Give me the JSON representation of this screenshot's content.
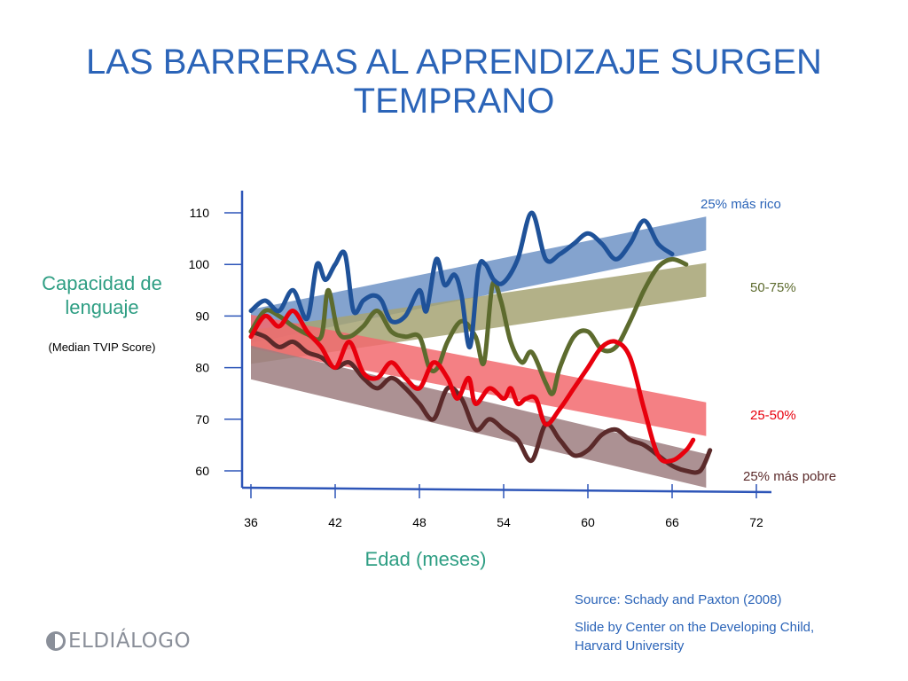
{
  "title": "LAS BARRERAS AL APRENDIZAJE SURGEN TEMPRANO",
  "ylabel": "Capacidad de lenguaje",
  "ysubtitle": "(Median TVIP Score)",
  "xlabel": "Edad (meses)",
  "source": "Source: Schady and Paxton (2008)",
  "credit": "Slide by  Center on the Developing Child, Harvard University",
  "logo_text": "ELDIÁLOGO",
  "colors": {
    "title": "#2b64b8",
    "axis_label": "#2e9e83",
    "axis": "#2d55b8"
  },
  "chart_data": {
    "type": "line",
    "xlabel": "Edad (meses)",
    "ylabel": "Capacidad de lenguaje",
    "xlim": [
      36,
      72
    ],
    "ylim": [
      56,
      113
    ],
    "x_ticks": [
      36,
      42,
      48,
      54,
      60,
      66,
      72
    ],
    "y_ticks": [
      60,
      70,
      80,
      90,
      100,
      110
    ],
    "grid": false,
    "legend": "right, labels at line ends",
    "series": [
      {
        "name": "25% más rico",
        "color": "#1f5299",
        "label_color": "#2b64b8",
        "points": [
          [
            36,
            91
          ],
          [
            37,
            93
          ],
          [
            38,
            91
          ],
          [
            39,
            95
          ],
          [
            40,
            89.5
          ],
          [
            40.7,
            100
          ],
          [
            41.3,
            97
          ],
          [
            42,
            100
          ],
          [
            42.7,
            102
          ],
          [
            43.3,
            91
          ],
          [
            44,
            93
          ],
          [
            44.7,
            94
          ],
          [
            45.3,
            93
          ],
          [
            46,
            89
          ],
          [
            47,
            90
          ],
          [
            48,
            95
          ],
          [
            48.5,
            91
          ],
          [
            49.2,
            101
          ],
          [
            49.8,
            96
          ],
          [
            50.5,
            98
          ],
          [
            51,
            94
          ],
          [
            51.6,
            84
          ],
          [
            52.2,
            99
          ],
          [
            52.7,
            100
          ],
          [
            53.3,
            97
          ],
          [
            54,
            96.5
          ],
          [
            55,
            101
          ],
          [
            56,
            110
          ],
          [
            57,
            101
          ],
          [
            58,
            102
          ],
          [
            59,
            104
          ],
          [
            60,
            106
          ],
          [
            61,
            104
          ],
          [
            62,
            101
          ],
          [
            63,
            104
          ],
          [
            64,
            108.5
          ],
          [
            65,
            104
          ],
          [
            66,
            102
          ]
        ],
        "band": {
          "start": [
            36,
            88
          ],
          "end": [
            70,
            106
          ],
          "color": "#6f93c6"
        }
      },
      {
        "name": "50-75%",
        "color": "#5d6b2e",
        "label_color": "#5d6b2e",
        "points": [
          [
            36,
            87
          ],
          [
            37,
            91
          ],
          [
            38,
            90
          ],
          [
            39,
            88
          ],
          [
            40,
            86.5
          ],
          [
            41,
            86
          ],
          [
            41.5,
            95
          ],
          [
            42.2,
            87
          ],
          [
            43,
            86
          ],
          [
            44,
            88
          ],
          [
            45,
            91
          ],
          [
            46,
            87
          ],
          [
            47,
            86
          ],
          [
            48,
            86
          ],
          [
            48.7,
            80
          ],
          [
            49.3,
            80
          ],
          [
            50,
            85
          ],
          [
            51,
            89
          ],
          [
            52,
            86
          ],
          [
            52.6,
            81
          ],
          [
            53.2,
            96
          ],
          [
            53.8,
            93
          ],
          [
            54.5,
            85
          ],
          [
            55.3,
            81
          ],
          [
            56,
            83
          ],
          [
            57,
            77
          ],
          [
            57.5,
            75
          ],
          [
            58,
            80
          ],
          [
            59,
            86
          ],
          [
            60,
            87
          ],
          [
            61,
            83.5
          ],
          [
            62,
            84
          ],
          [
            63,
            89
          ],
          [
            64,
            95
          ],
          [
            65,
            99.5
          ],
          [
            66,
            101
          ],
          [
            67,
            100
          ]
        ],
        "band": {
          "start": [
            36,
            84
          ],
          "end": [
            70,
            97
          ],
          "color": "#a6a373"
        }
      },
      {
        "name": "25-50%",
        "color": "#e8000d",
        "label_color": "#e8000d",
        "points": [
          [
            36,
            86
          ],
          [
            37,
            90
          ],
          [
            38,
            88
          ],
          [
            39,
            91
          ],
          [
            40,
            87
          ],
          [
            41,
            84
          ],
          [
            42,
            80
          ],
          [
            43,
            85
          ],
          [
            44,
            79
          ],
          [
            45,
            78
          ],
          [
            46,
            81
          ],
          [
            47,
            78
          ],
          [
            48,
            76
          ],
          [
            49,
            81
          ],
          [
            50,
            78
          ],
          [
            50.7,
            74
          ],
          [
            51.5,
            78
          ],
          [
            52,
            73
          ],
          [
            53,
            76
          ],
          [
            54,
            74
          ],
          [
            54.5,
            76
          ],
          [
            55,
            73
          ],
          [
            55.6,
            74
          ],
          [
            56.3,
            74
          ],
          [
            57,
            69
          ],
          [
            58,
            72
          ],
          [
            59,
            76
          ],
          [
            60,
            80
          ],
          [
            61,
            84
          ],
          [
            62,
            85
          ],
          [
            63,
            82
          ],
          [
            64,
            72
          ],
          [
            65,
            63
          ],
          [
            66,
            62
          ],
          [
            67,
            64
          ],
          [
            67.5,
            66
          ]
        ],
        "band": {
          "start": [
            36,
            87
          ],
          "end": [
            70,
            70
          ],
          "color": "#f26a6f"
        }
      },
      {
        "name": "25% más pobre",
        "color": "#5b2a2a",
        "label_color": "#5b2a2a",
        "points": [
          [
            36,
            87
          ],
          [
            37,
            86
          ],
          [
            38,
            84
          ],
          [
            39,
            85
          ],
          [
            40,
            83
          ],
          [
            41,
            82
          ],
          [
            42,
            80
          ],
          [
            43,
            81
          ],
          [
            44,
            78
          ],
          [
            45,
            76
          ],
          [
            46,
            78
          ],
          [
            47,
            76
          ],
          [
            48,
            73
          ],
          [
            49,
            70
          ],
          [
            50,
            76
          ],
          [
            51,
            74
          ],
          [
            52,
            68
          ],
          [
            53,
            70
          ],
          [
            54,
            68
          ],
          [
            55,
            66
          ],
          [
            56,
            62
          ],
          [
            57,
            69
          ],
          [
            58,
            66
          ],
          [
            59,
            63
          ],
          [
            60,
            64
          ],
          [
            61,
            67
          ],
          [
            62,
            68
          ],
          [
            63,
            66
          ],
          [
            64,
            65
          ],
          [
            65,
            63
          ],
          [
            66,
            61
          ],
          [
            67,
            60
          ],
          [
            68,
            60
          ],
          [
            68.7,
            64
          ]
        ],
        "band": {
          "start": [
            36,
            81
          ],
          "end": [
            70,
            60
          ],
          "color": "#9e7e80"
        }
      }
    ]
  }
}
